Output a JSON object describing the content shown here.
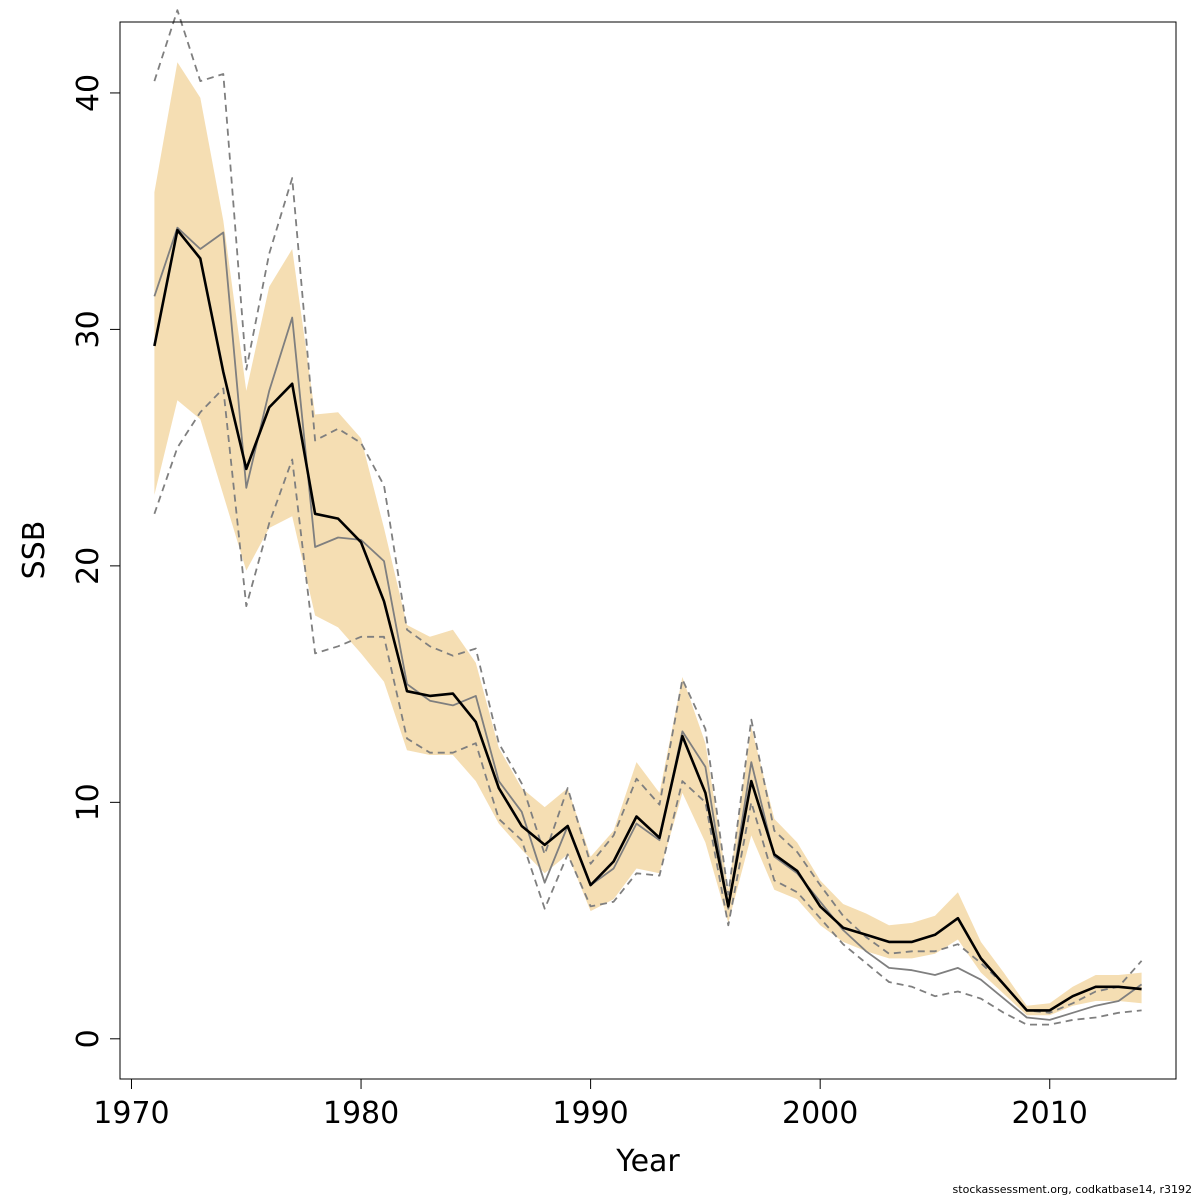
{
  "chart_data": {
    "type": "line",
    "title": "",
    "xlabel": "Year",
    "ylabel": "SSB",
    "xlim": [
      1969.5,
      2015.5
    ],
    "ylim": [
      -1.7,
      43
    ],
    "x_ticks": [
      1970,
      1980,
      1990,
      2000,
      2010
    ],
    "y_ticks": [
      0,
      10,
      20,
      30,
      40
    ],
    "grid": false,
    "legend": "none",
    "x": [
      1971,
      1972,
      1973,
      1974,
      1975,
      1976,
      1977,
      1978,
      1979,
      1980,
      1981,
      1982,
      1983,
      1984,
      1985,
      1986,
      1987,
      1988,
      1989,
      1990,
      1991,
      1992,
      1993,
      1994,
      1995,
      1996,
      1997,
      1998,
      1999,
      2000,
      2001,
      2002,
      2003,
      2004,
      2005,
      2006,
      2007,
      2008,
      2009,
      2010,
      2011,
      2012,
      2013,
      2014
    ],
    "series": [
      {
        "role": "estimate",
        "color": "#000000",
        "values": [
          29.3,
          34.2,
          33.0,
          28.2,
          24.1,
          26.7,
          27.7,
          22.2,
          22.0,
          21.0,
          18.5,
          14.7,
          14.5,
          14.6,
          13.4,
          10.6,
          9.0,
          8.2,
          9.0,
          6.5,
          7.5,
          9.4,
          8.5,
          12.8,
          10.4,
          5.6,
          10.9,
          7.8,
          7.1,
          5.6,
          4.7,
          4.4,
          4.1,
          4.1,
          4.4,
          5.1,
          3.4,
          2.3,
          1.2,
          1.2,
          1.8,
          2.2,
          2.2,
          2.1
        ]
      },
      {
        "role": "ci-lower",
        "values": [
          23.0,
          27.0,
          26.2,
          23.0,
          19.8,
          21.6,
          22.1,
          17.9,
          17.4,
          16.3,
          15.1,
          12.2,
          12.0,
          12.0,
          10.9,
          9.1,
          8.0,
          7.0,
          7.8,
          5.4,
          5.9,
          7.2,
          7.0,
          10.4,
          8.3,
          4.9,
          8.6,
          6.3,
          5.9,
          4.8,
          4.1,
          3.7,
          3.4,
          3.4,
          3.6,
          4.2,
          2.8,
          1.9,
          1.0,
          1.0,
          1.4,
          1.6,
          1.6,
          1.5
        ]
      },
      {
        "role": "ci-upper",
        "values": [
          35.8,
          41.3,
          39.8,
          34.6,
          27.4,
          31.8,
          33.4,
          26.4,
          26.5,
          25.4,
          21.6,
          17.5,
          17.0,
          17.3,
          15.9,
          12.3,
          10.6,
          9.8,
          10.6,
          7.7,
          8.8,
          11.7,
          10.4,
          15.3,
          12.5,
          6.3,
          13.2,
          9.3,
          8.3,
          6.7,
          5.7,
          5.3,
          4.8,
          4.9,
          5.2,
          6.2,
          4.1,
          2.8,
          1.4,
          1.5,
          2.2,
          2.7,
          2.7,
          2.8
        ]
      },
      {
        "role": "comparison",
        "color": "#7f7f7f",
        "values": [
          31.4,
          34.3,
          33.4,
          34.1,
          23.3,
          27.4,
          30.5,
          20.8,
          21.2,
          21.1,
          20.2,
          15.0,
          14.3,
          14.1,
          14.5,
          10.9,
          9.6,
          6.6,
          9.0,
          6.5,
          7.2,
          9.1,
          8.4,
          13.0,
          11.5,
          5.5,
          11.7,
          7.7,
          7.0,
          5.8,
          4.6,
          3.7,
          3.0,
          2.9,
          2.7,
          3.0,
          2.5,
          1.7,
          0.9,
          0.8,
          1.1,
          1.4,
          1.6,
          2.3
        ]
      },
      {
        "role": "comparison-lower",
        "color": "#7f7f7f",
        "values": [
          22.2,
          25.0,
          26.5,
          27.5,
          18.3,
          21.8,
          24.5,
          16.3,
          16.6,
          17.0,
          17.0,
          12.7,
          12.1,
          12.1,
          12.5,
          9.3,
          8.4,
          5.5,
          7.8,
          5.6,
          5.8,
          7.0,
          6.9,
          10.9,
          10.0,
          4.8,
          10.0,
          6.7,
          6.2,
          5.1,
          4.0,
          3.2,
          2.4,
          2.2,
          1.8,
          2.0,
          1.7,
          1.1,
          0.6,
          0.6,
          0.8,
          0.9,
          1.1,
          1.2
        ]
      },
      {
        "role": "comparison-upper",
        "color": "#7f7f7f",
        "values": [
          40.5,
          43.5,
          40.5,
          40.8,
          28.3,
          33.2,
          36.4,
          25.3,
          25.8,
          25.2,
          23.4,
          17.3,
          16.6,
          16.2,
          16.5,
          12.5,
          10.8,
          7.8,
          10.6,
          7.4,
          8.6,
          11.0,
          9.9,
          15.2,
          13.1,
          6.1,
          13.5,
          8.8,
          7.9,
          6.5,
          5.2,
          4.3,
          3.6,
          3.7,
          3.7,
          4.0,
          3.2,
          2.3,
          1.2,
          1.1,
          1.5,
          2.0,
          2.2,
          3.3
        ]
      }
    ],
    "band_color": "#f5deb3",
    "footer": "stockassessment.org, codkatbase14, r3192"
  }
}
